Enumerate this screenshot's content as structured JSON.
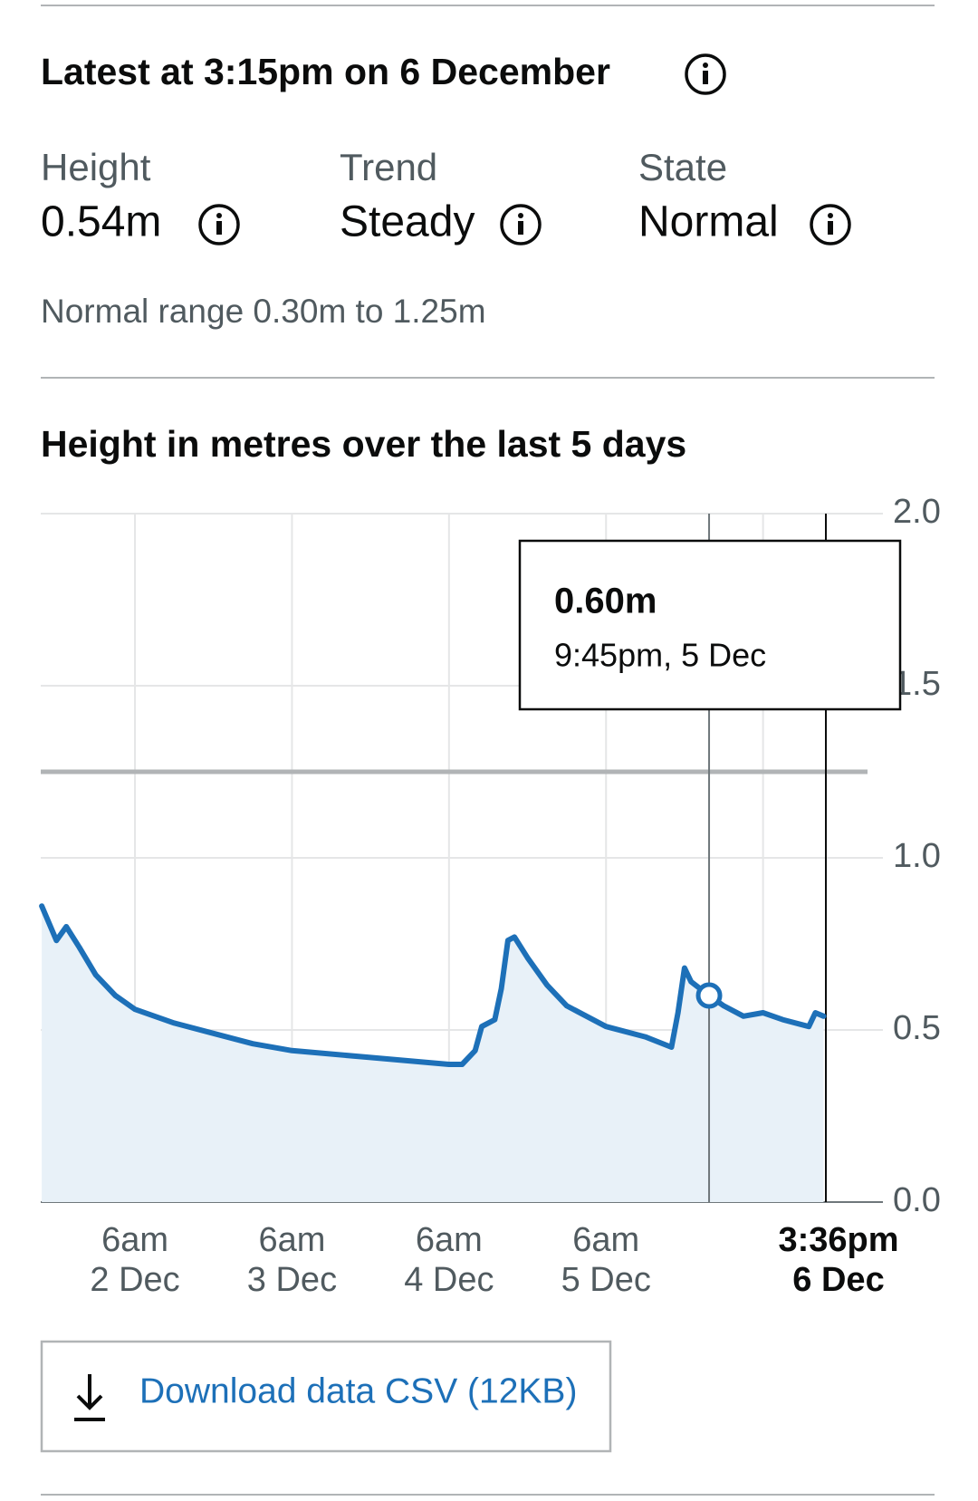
{
  "header": {
    "title": "Latest at 3:15pm on 6 December"
  },
  "readings": [
    {
      "label": "Height",
      "value": "0.54m"
    },
    {
      "label": "Trend",
      "value": "Steady"
    },
    {
      "label": "State",
      "value": "Normal"
    }
  ],
  "normal_range": "Normal range 0.30m to 1.25m",
  "chart_data": {
    "type": "line",
    "title": "Height in metres over the last 5 days",
    "color": "#1d70b8",
    "area_color": "#e8f1f8",
    "x": [
      "1 Dec 3:45pm",
      "1 Dec 6:00pm",
      "1 Dec 7:30pm",
      "1 Dec 9:30pm",
      "2 Dec 12:00am",
      "2 Dec 3:00am",
      "2 Dec 6:00am",
      "2 Dec 12:00pm",
      "2 Dec 6:00pm",
      "3 Dec 12:00am",
      "3 Dec 6:00am",
      "3 Dec 6:00pm",
      "4 Dec 6:00am",
      "4 Dec 8:00am",
      "4 Dec 10:00am",
      "4 Dec 11:00am",
      "4 Dec 1:00pm",
      "4 Dec 2:00pm",
      "4 Dec 3:00pm",
      "4 Dec 4:00pm",
      "4 Dec 6:00pm",
      "4 Dec 9:00pm",
      "5 Dec 12:00am",
      "5 Dec 6:00am",
      "5 Dec 12:00pm",
      "5 Dec 4:00pm",
      "5 Dec 5:00pm",
      "5 Dec 6:00pm",
      "5 Dec 7:00pm",
      "5 Dec 9:45pm",
      "6 Dec 12:00am",
      "6 Dec 3:00am",
      "6 Dec 6:00am",
      "6 Dec 9:00am",
      "6 Dec 1:00pm",
      "6 Dec 2:00pm",
      "6 Dec 3:15pm"
    ],
    "values": [
      0.86,
      0.76,
      0.8,
      0.74,
      0.66,
      0.6,
      0.56,
      0.52,
      0.49,
      0.46,
      0.44,
      0.42,
      0.4,
      0.4,
      0.44,
      0.51,
      0.53,
      0.62,
      0.76,
      0.77,
      0.71,
      0.63,
      0.57,
      0.51,
      0.48,
      0.45,
      0.55,
      0.68,
      0.64,
      0.6,
      0.57,
      0.54,
      0.55,
      0.53,
      0.51,
      0.55,
      0.54
    ],
    "xlim": [
      "1 Dec 3:36pm",
      "6 Dec 3:36pm"
    ],
    "xticks": [
      {
        "value": "2 Dec 6am",
        "label": [
          "6am",
          "2 Dec"
        ]
      },
      {
        "value": "3 Dec 6am",
        "label": [
          "6am",
          "3 Dec"
        ]
      },
      {
        "value": "4 Dec 6am",
        "label": [
          "6am",
          "4 Dec"
        ]
      },
      {
        "value": "5 Dec 6am",
        "label": [
          "6am",
          "5 Dec"
        ]
      },
      {
        "value": "6 Dec 6am",
        "label": null
      }
    ],
    "now_marker": {
      "value": "6 Dec 3:36pm",
      "label": [
        "3:36pm",
        "6 Dec"
      ]
    },
    "ylim": [
      0,
      2
    ],
    "yticks": [
      {
        "value": 0,
        "label": "0.0"
      },
      0.5,
      {
        "value": 1,
        "label": "1.0"
      },
      1.5,
      {
        "value": 2,
        "label": "2.0"
      }
    ],
    "grid": true,
    "threshold": 1.25,
    "tooltip": {
      "x": "5 Dec 9:45pm",
      "value": 0.6,
      "value_label": "0.60m",
      "x_label": "9:45pm, 5 Dec"
    }
  },
  "download": {
    "label": "Download data CSV (12KB)"
  }
}
